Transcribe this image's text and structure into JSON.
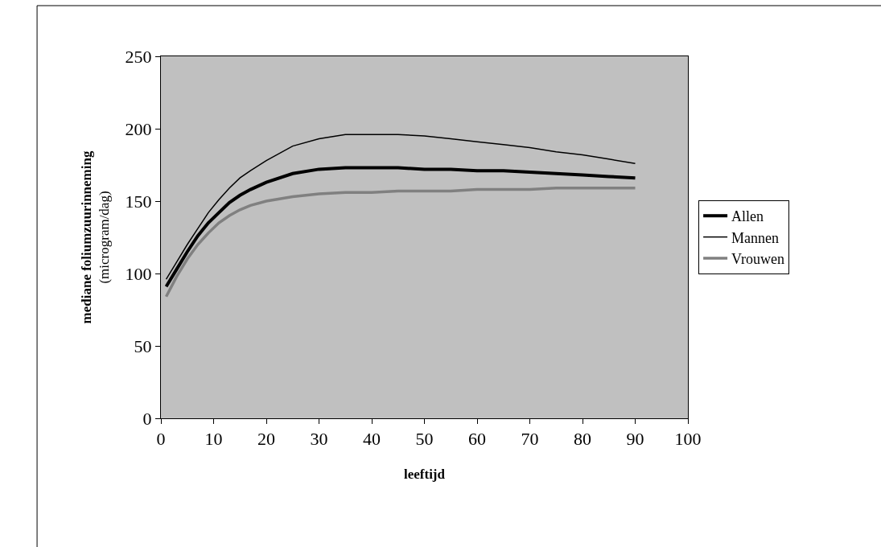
{
  "chart_data": {
    "type": "line",
    "xlabel": "leeftijd",
    "ylabel": "mediane foliumzuurinneming\n(microgram/dag)",
    "x": [
      1,
      3,
      5,
      7,
      9,
      11,
      13,
      15,
      17,
      20,
      25,
      30,
      35,
      40,
      45,
      50,
      55,
      60,
      65,
      70,
      75,
      80,
      85,
      90
    ],
    "series": [
      {
        "name": "Allen",
        "color": "#000000",
        "values": [
          91,
          103,
          115,
          126,
          135,
          142,
          149,
          154,
          158,
          163,
          169,
          172,
          173,
          173,
          173,
          172,
          172,
          171,
          171,
          170,
          169,
          168,
          167,
          166
        ]
      },
      {
        "name": "Mannen",
        "color": "#000000",
        "values": [
          96,
          108,
          120,
          131,
          142,
          151,
          159,
          166,
          171,
          178,
          188,
          193,
          196,
          196,
          196,
          195,
          193,
          191,
          189,
          187,
          184,
          182,
          179,
          176
        ]
      },
      {
        "name": "Vrouwen",
        "color": "#808080",
        "values": [
          84,
          98,
          110,
          120,
          128,
          135,
          140,
          144,
          147,
          150,
          153,
          155,
          156,
          156,
          157,
          157,
          157,
          158,
          158,
          158,
          159,
          159,
          159,
          159
        ]
      }
    ],
    "xlim": [
      0,
      100
    ],
    "xticks": [
      0,
      10,
      20,
      30,
      40,
      50,
      60,
      70,
      80,
      90,
      100
    ],
    "ylim": [
      0,
      250
    ],
    "yticks": [
      0,
      50,
      100,
      150,
      200,
      250
    ],
    "legend": "right",
    "line_style": "solid",
    "marker": "none"
  }
}
